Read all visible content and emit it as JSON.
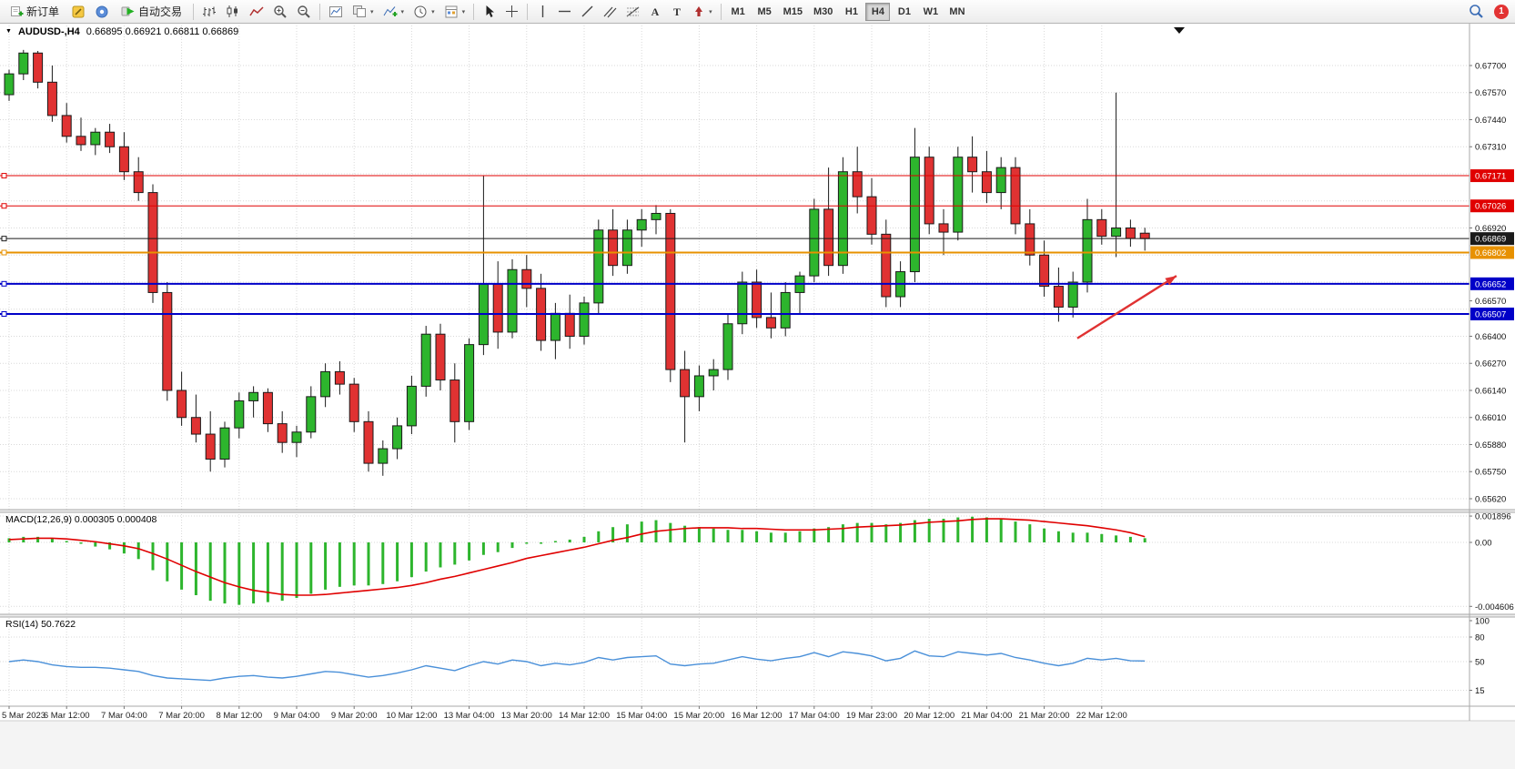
{
  "toolbar": {
    "new_order_label": "新订单",
    "autotrading_label": "自动交易",
    "timeframes": [
      "M1",
      "M5",
      "M15",
      "M30",
      "H1",
      "H4",
      "D1",
      "W1",
      "MN"
    ],
    "active_timeframe": "H4",
    "notification_count": "1"
  },
  "chart_header": {
    "menu_icon": "▼",
    "symbol_period": "AUDUSD-,H4",
    "ohlc": "0.66895 0.66921 0.66811 0.66869"
  },
  "panels": {
    "macd_label": "MACD(12,26,9) 0.000305 0.000408",
    "rsi_label": "RSI(14) 50.7622"
  },
  "colors": {
    "up": "#2db52d",
    "down": "#e03232",
    "outline": "#1a1a1a",
    "macd_hist": "#2db52d",
    "macd_signal": "#e00000",
    "rsi_line": "#4a90d9",
    "grid": "#d9d9d9",
    "axis_text": "#111111",
    "badge_text": "#ffffff"
  },
  "chart_data": [
    {
      "type": "candlestick",
      "symbol": "AUDUSD-",
      "period": "H4",
      "current_ohlc": {
        "open": 0.66895,
        "high": 0.66921,
        "low": 0.66811,
        "close": 0.66869
      },
      "label_step": 4,
      "x_labels": [
        "5 Mar 2023",
        "6 Mar 12:00",
        "7 Mar 04:00",
        "7 Mar 20:00",
        "8 Mar 12:00",
        "9 Mar 04:00",
        "9 Mar 20:00",
        "10 Mar 12:00",
        "13 Mar 04:00",
        "13 Mar 20:00",
        "14 Mar 12:00",
        "15 Mar 04:00",
        "15 Mar 20:00",
        "16 Mar 12:00",
        "17 Mar 04:00",
        "19 Mar 23:00",
        "20 Mar 12:00",
        "21 Mar 04:00",
        "21 Mar 20:00",
        "22 Mar 12:00"
      ],
      "ohlc": [
        [
          0.6756,
          0.6768,
          0.6753,
          0.6766
        ],
        [
          0.6766,
          0.67775,
          0.6763,
          0.6776
        ],
        [
          0.6776,
          0.6777,
          0.6759,
          0.6762
        ],
        [
          0.6762,
          0.677,
          0.6743,
          0.6746
        ],
        [
          0.6746,
          0.6752,
          0.6733,
          0.6736
        ],
        [
          0.6736,
          0.6745,
          0.6729,
          0.6732
        ],
        [
          0.6732,
          0.674,
          0.6727,
          0.6738
        ],
        [
          0.6738,
          0.6742,
          0.6728,
          0.6731
        ],
        [
          0.6731,
          0.6738,
          0.6715,
          0.6719
        ],
        [
          0.6719,
          0.6726,
          0.6705,
          0.6709
        ],
        [
          0.6709,
          0.6713,
          0.6656,
          0.6661
        ],
        [
          0.6661,
          0.6666,
          0.6609,
          0.6614
        ],
        [
          0.6614,
          0.6623,
          0.6597,
          0.6601
        ],
        [
          0.6601,
          0.6612,
          0.6589,
          0.6593
        ],
        [
          0.6593,
          0.6604,
          0.6575,
          0.6581
        ],
        [
          0.6581,
          0.6599,
          0.6577,
          0.6596
        ],
        [
          0.6596,
          0.6613,
          0.6591,
          0.6609
        ],
        [
          0.6609,
          0.6616,
          0.6601,
          0.6613
        ],
        [
          0.6613,
          0.6615,
          0.6594,
          0.6598
        ],
        [
          0.6598,
          0.6604,
          0.6584,
          0.6589
        ],
        [
          0.6589,
          0.6597,
          0.6582,
          0.6594
        ],
        [
          0.6594,
          0.6616,
          0.6591,
          0.6611
        ],
        [
          0.6611,
          0.6627,
          0.6606,
          0.6623
        ],
        [
          0.6623,
          0.6628,
          0.6612,
          0.6617
        ],
        [
          0.6617,
          0.662,
          0.6594,
          0.6599
        ],
        [
          0.6599,
          0.6604,
          0.6575,
          0.6579
        ],
        [
          0.6579,
          0.659,
          0.6573,
          0.6586
        ],
        [
          0.6586,
          0.6601,
          0.6581,
          0.6597
        ],
        [
          0.6597,
          0.6621,
          0.6593,
          0.6616
        ],
        [
          0.6616,
          0.6645,
          0.6611,
          0.6641
        ],
        [
          0.6641,
          0.6646,
          0.6614,
          0.6619
        ],
        [
          0.6619,
          0.6627,
          0.6589,
          0.6599
        ],
        [
          0.6599,
          0.6639,
          0.6595,
          0.6636
        ],
        [
          0.6636,
          0.6717,
          0.6631,
          0.6665
        ],
        [
          0.6665,
          0.6676,
          0.6634,
          0.6642
        ],
        [
          0.6642,
          0.6677,
          0.6639,
          0.6672
        ],
        [
          0.6672,
          0.6679,
          0.6654,
          0.6663
        ],
        [
          0.6663,
          0.667,
          0.6633,
          0.6638
        ],
        [
          0.6638,
          0.6656,
          0.6629,
          0.6651
        ],
        [
          0.6651,
          0.666,
          0.6634,
          0.664
        ],
        [
          0.664,
          0.6659,
          0.6636,
          0.6656
        ],
        [
          0.6656,
          0.6696,
          0.6651,
          0.6691
        ],
        [
          0.6691,
          0.6701,
          0.6669,
          0.6674
        ],
        [
          0.6674,
          0.6696,
          0.667,
          0.6691
        ],
        [
          0.6691,
          0.6701,
          0.6683,
          0.6696
        ],
        [
          0.6696,
          0.6703,
          0.6689,
          0.6699
        ],
        [
          0.6699,
          0.6701,
          0.6618,
          0.6624
        ],
        [
          0.6624,
          0.6633,
          0.6589,
          0.6611
        ],
        [
          0.6611,
          0.6626,
          0.6604,
          0.6621
        ],
        [
          0.6621,
          0.6629,
          0.6614,
          0.6624
        ],
        [
          0.6624,
          0.6651,
          0.6619,
          0.6646
        ],
        [
          0.6646,
          0.6671,
          0.6641,
          0.6666
        ],
        [
          0.6666,
          0.6672,
          0.6644,
          0.6649
        ],
        [
          0.6649,
          0.6661,
          0.6639,
          0.6644
        ],
        [
          0.6644,
          0.6666,
          0.664,
          0.6661
        ],
        [
          0.6661,
          0.6671,
          0.6651,
          0.6669
        ],
        [
          0.6669,
          0.6706,
          0.6666,
          0.6701
        ],
        [
          0.6701,
          0.6721,
          0.6669,
          0.6674
        ],
        [
          0.6674,
          0.6726,
          0.667,
          0.6719
        ],
        [
          0.6719,
          0.6731,
          0.6699,
          0.6707
        ],
        [
          0.6707,
          0.6716,
          0.6684,
          0.6689
        ],
        [
          0.6689,
          0.6696,
          0.6654,
          0.6659
        ],
        [
          0.6659,
          0.6676,
          0.6654,
          0.6671
        ],
        [
          0.6671,
          0.674,
          0.6666,
          0.6726
        ],
        [
          0.6726,
          0.6731,
          0.6689,
          0.6694
        ],
        [
          0.6694,
          0.6701,
          0.6679,
          0.669
        ],
        [
          0.669,
          0.6731,
          0.6686,
          0.6726
        ],
        [
          0.6726,
          0.6736,
          0.6709,
          0.6719
        ],
        [
          0.6719,
          0.6729,
          0.6704,
          0.6709
        ],
        [
          0.6709,
          0.6726,
          0.6701,
          0.6721
        ],
        [
          0.6721,
          0.6726,
          0.6689,
          0.6694
        ],
        [
          0.6694,
          0.6701,
          0.6674,
          0.6679
        ],
        [
          0.6679,
          0.6686,
          0.6659,
          0.6664
        ],
        [
          0.6664,
          0.6673,
          0.6647,
          0.6654
        ],
        [
          0.6654,
          0.6671,
          0.6649,
          0.6666
        ],
        [
          0.6666,
          0.6706,
          0.6661,
          0.6696
        ],
        [
          0.6696,
          0.6701,
          0.6684,
          0.6688
        ],
        [
          0.6688,
          0.6757,
          0.6678,
          0.6692
        ],
        [
          0.6692,
          0.6696,
          0.6683,
          0.6687
        ],
        [
          0.66895,
          0.66921,
          0.66811,
          0.66869
        ]
      ],
      "y_axis": {
        "ticks": [
          {
            "price": 0.677,
            "label": "0.67700"
          },
          {
            "price": 0.6757,
            "label": "0.67570"
          },
          {
            "price": 0.6744,
            "label": "0.67440"
          },
          {
            "price": 0.6731,
            "label": "0.67310"
          },
          {
            "price": 0.6692,
            "label": "0.66920"
          },
          {
            "price": 0.6657,
            "label": "0.66570"
          },
          {
            "price": 0.664,
            "label": "0.66400"
          },
          {
            "price": 0.6627,
            "label": "0.66270"
          },
          {
            "price": 0.6614,
            "label": "0.66140"
          },
          {
            "price": 0.6601,
            "label": "0.66010"
          },
          {
            "price": 0.6588,
            "label": "0.65880"
          },
          {
            "price": 0.6575,
            "label": "0.65750"
          },
          {
            "price": 0.6562,
            "label": "0.65620"
          }
        ],
        "badges": [
          {
            "price": 0.67171,
            "label": "0.67171",
            "color": "#e00000"
          },
          {
            "price": 0.67026,
            "label": "0.67026",
            "color": "#e00000"
          },
          {
            "price": 0.66869,
            "label": "0.66869",
            "color": "#1a1a1a"
          },
          {
            "price": 0.66802,
            "label": "0.66802",
            "color": "#e79100"
          },
          {
            "price": 0.66652,
            "label": "0.66652",
            "color": "#0000c8"
          },
          {
            "price": 0.66507,
            "label": "0.66507",
            "color": "#0000c8"
          }
        ]
      },
      "hlines": [
        {
          "price": 0.67171,
          "label": "0.67171",
          "color": "#e00000",
          "width": 1
        },
        {
          "price": 0.67026,
          "label": "0.67026",
          "color": "#e00000",
          "width": 1
        },
        {
          "price": 0.66869,
          "label": "0.66869",
          "color": "#1a1a1a",
          "width": 1
        },
        {
          "price": 0.66802,
          "label": "0.66802",
          "color": "#e79100",
          "width": 2
        },
        {
          "price": 0.66652,
          "label": "0.66652",
          "color": "#0000c8",
          "width": 2
        },
        {
          "price": 0.66507,
          "label": "0.66507",
          "color": "#0000c8",
          "width": 2
        }
      ],
      "annotations": [
        {
          "type": "arrow",
          "from_bar": 74.3,
          "from_price": 0.6639,
          "to_bar": 81.2,
          "to_price": 0.6669,
          "color": "#e03232"
        }
      ]
    },
    {
      "type": "bar",
      "name": "MACD",
      "params": [
        12,
        26,
        9
      ],
      "value": 0.000305,
      "signal_value": 0.000408,
      "histogram_scale": 0.0001,
      "histogram": [
        3,
        4,
        4,
        3,
        1,
        -1,
        -3,
        -5,
        -8,
        -12,
        -20,
        -28,
        -34,
        -38,
        -42,
        -44,
        -45,
        -44,
        -43,
        -42,
        -40,
        -37,
        -34,
        -32,
        -31,
        -31,
        -30,
        -28,
        -25,
        -21,
        -18,
        -16,
        -13,
        -9,
        -7,
        -4,
        -1,
        -1,
        1,
        2,
        4,
        8,
        11,
        13,
        15,
        16,
        14,
        12,
        11,
        10,
        9,
        9,
        8,
        7,
        7,
        8,
        10,
        11,
        13,
        14,
        14,
        13,
        14,
        16,
        17,
        17,
        18,
        18.5,
        18,
        17,
        15,
        13,
        10,
        8,
        7,
        7,
        6,
        5,
        4,
        3.05
      ],
      "signal": [
        2,
        2.5,
        3,
        3,
        2.5,
        1.5,
        0.5,
        -1,
        -2.5,
        -4.5,
        -8,
        -12,
        -16.5,
        -21,
        -25,
        -29,
        -32,
        -34.5,
        -36,
        -37.5,
        -38,
        -38,
        -37.5,
        -36.5,
        -35.5,
        -34.5,
        -33.5,
        -32.5,
        -31,
        -29,
        -26.5,
        -24.5,
        -22,
        -19.5,
        -17,
        -14.5,
        -11.5,
        -9.5,
        -7.5,
        -5.5,
        -3.5,
        -1,
        1.5,
        3.5,
        6,
        8,
        9,
        10,
        10.5,
        10.5,
        10.5,
        10,
        10,
        9.5,
        9,
        9,
        9,
        9.5,
        10,
        11,
        11.5,
        12,
        12.5,
        13.5,
        14.5,
        15,
        15.5,
        16.5,
        17,
        17,
        16.5,
        16,
        15,
        14,
        13,
        12,
        10.5,
        9,
        7,
        4.08
      ],
      "y_ticks": [
        {
          "v": 0.001896,
          "label": "0.001896"
        },
        {
          "v": 0,
          "label": "0.00"
        },
        {
          "v": -0.004606,
          "label": "-0.004606"
        }
      ]
    },
    {
      "type": "line",
      "name": "RSI",
      "params": [
        14
      ],
      "value": 50.7622,
      "values": [
        50,
        52,
        50,
        46,
        44,
        43,
        43,
        42,
        40,
        38,
        33,
        30,
        29,
        28,
        27,
        30,
        32,
        33,
        31,
        30,
        32,
        35,
        38,
        37,
        34,
        31,
        33,
        36,
        40,
        45,
        42,
        39,
        45,
        50,
        47,
        52,
        50,
        45,
        48,
        46,
        49,
        55,
        52,
        55,
        56,
        57,
        47,
        45,
        47,
        48,
        52,
        56,
        53,
        51,
        54,
        56,
        61,
        56,
        62,
        60,
        57,
        51,
        54,
        63,
        57,
        56,
        62,
        60,
        58,
        60,
        55,
        52,
        48,
        45,
        48,
        54,
        52,
        54,
        51,
        50.76
      ],
      "levels": [
        80,
        50,
        15
      ],
      "y_ticks": [
        {
          "v": 100,
          "label": "100"
        },
        {
          "v": 80,
          "label": "80"
        },
        {
          "v": 50,
          "label": "50"
        },
        {
          "v": 15,
          "label": "15"
        }
      ]
    }
  ]
}
